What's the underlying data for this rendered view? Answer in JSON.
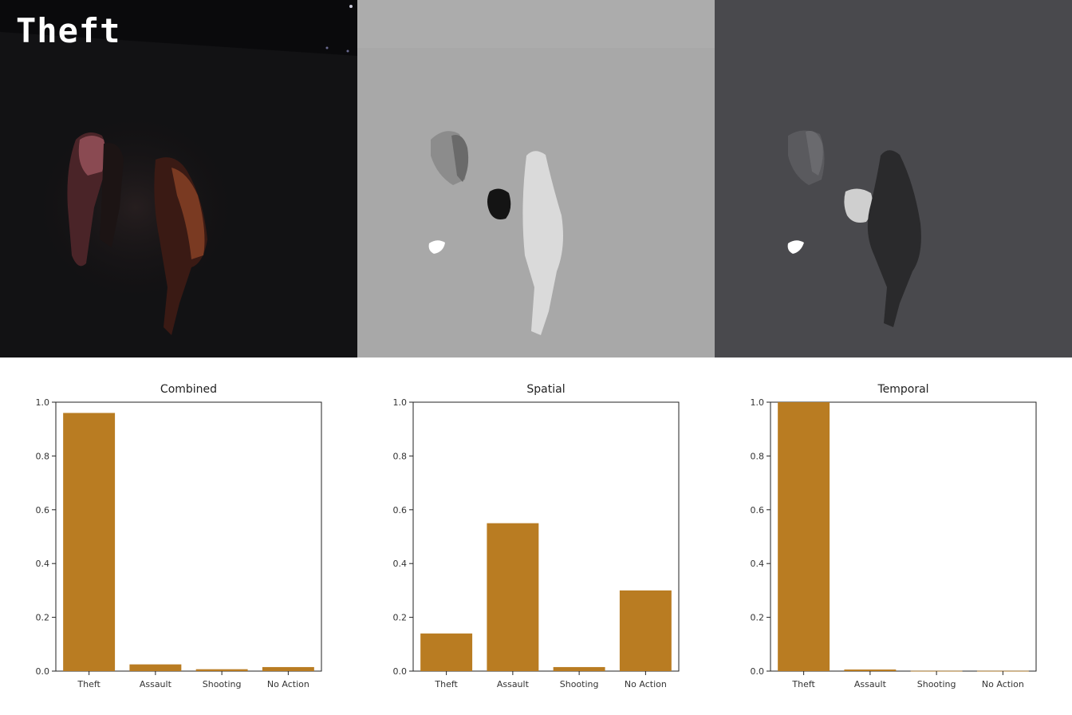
{
  "overlay_label": "Theft",
  "bar_color": "#b97c22",
  "chart_data": [
    {
      "type": "bar",
      "title": "Combined",
      "categories": [
        "Theft",
        "Assault",
        "Shooting",
        "No Action"
      ],
      "values": [
        0.96,
        0.025,
        0.007,
        0.015
      ],
      "ylim": [
        0,
        1.0
      ],
      "yticks": [
        "0.0",
        "0.2",
        "0.4",
        "0.6",
        "0.8",
        "1.0"
      ]
    },
    {
      "type": "bar",
      "title": "Spatial",
      "categories": [
        "Theft",
        "Assault",
        "Shooting",
        "No Action"
      ],
      "values": [
        0.14,
        0.55,
        0.015,
        0.3
      ],
      "ylim": [
        0,
        1.0
      ],
      "yticks": [
        "0.0",
        "0.2",
        "0.4",
        "0.6",
        "0.8",
        "1.0"
      ]
    },
    {
      "type": "bar",
      "title": "Temporal",
      "categories": [
        "Theft",
        "Assault",
        "Shooting",
        "No Action"
      ],
      "values": [
        1.0,
        0.006,
        0.001,
        0.001
      ],
      "ylim": [
        0,
        1.0
      ],
      "yticks": [
        "0.0",
        "0.2",
        "0.4",
        "0.6",
        "0.8",
        "1.0"
      ]
    }
  ]
}
